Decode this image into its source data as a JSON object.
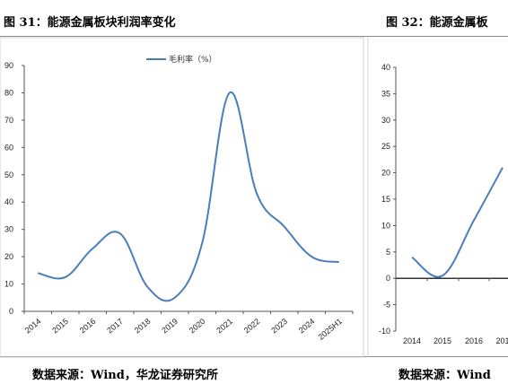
{
  "figures": {
    "left_title": "图 31：能源金属板块利润率变化",
    "right_title": "图 32：能源金属板",
    "left_source": "数据来源：Wind，华龙证券研究所",
    "right_source": "数据来源：Wind"
  },
  "chart_data": [
    {
      "type": "line",
      "title": "图 31：能源金属板块利润率变化",
      "categories": [
        "2014",
        "2015",
        "2016",
        "2017",
        "2018",
        "2019",
        "2020",
        "2021",
        "2022",
        "2023",
        "2024",
        "2025H1"
      ],
      "series": [
        {
          "name": "毛利率（%）",
          "color": "#4a7ebb",
          "values": [
            14,
            12.5,
            23,
            28.5,
            9,
            5,
            25,
            80,
            43,
            31,
            20,
            18
          ]
        }
      ],
      "yticks": [
        "0",
        "10",
        "20",
        "30",
        "40",
        "50",
        "60",
        "70",
        "80",
        "90"
      ],
      "ylim": [
        0,
        90
      ],
      "legend": "top-center",
      "grid": false
    },
    {
      "type": "line",
      "title": "图 32：能源金属板",
      "categories": [
        "2014",
        "2015",
        "2016",
        "201"
      ],
      "series": [
        {
          "color": "#4a7ebb",
          "values": [
            4,
            0.5,
            11,
            21
          ]
        }
      ],
      "yticks": [
        "-10",
        "-5",
        "0",
        "5",
        "10",
        "15",
        "20",
        "25",
        "30",
        "35",
        "40"
      ],
      "ylim": [
        -10,
        40
      ],
      "grid": false
    }
  ]
}
